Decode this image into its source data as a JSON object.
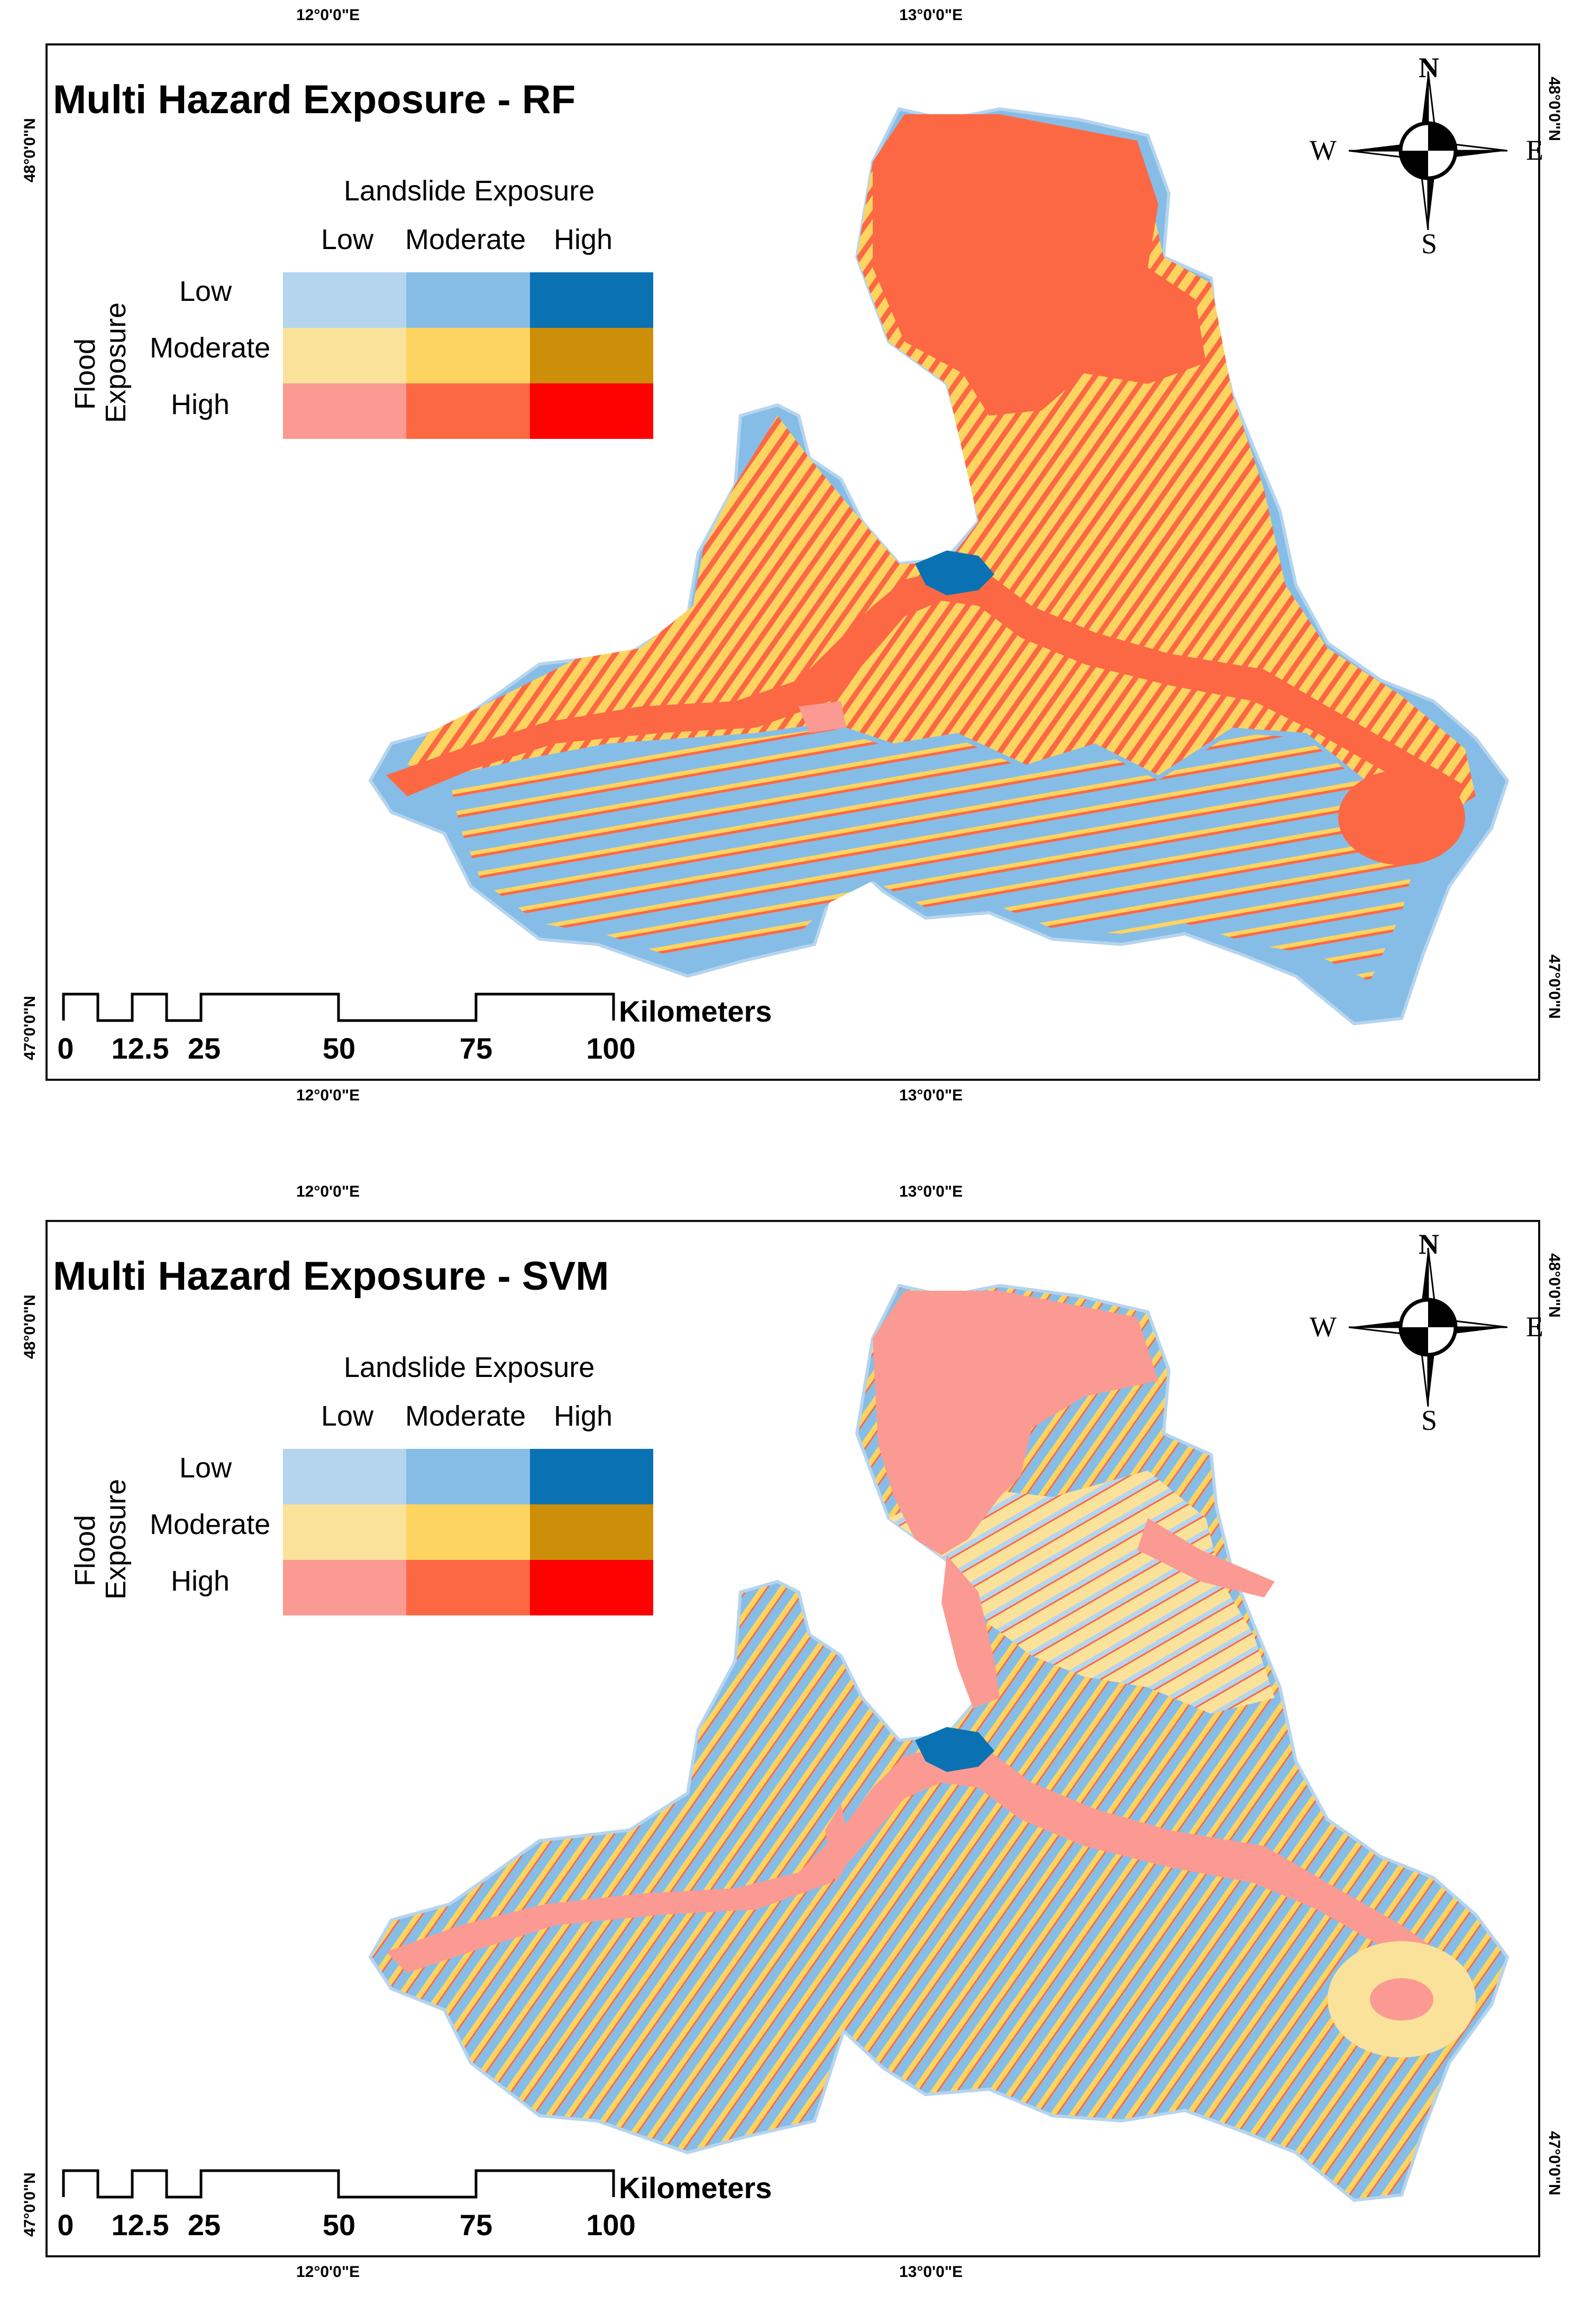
{
  "colors": {
    "low_low": "#b5d4ee",
    "low_mod": "#86bde6",
    "low_high": "#0a72b2",
    "mod_low": "#fbe29a",
    "mod_mod": "#fdd460",
    "mod_high": "#cd8e0a",
    "high_low": "#fb9a92",
    "high_mod": "#fd6844",
    "high_high": "#fd0201"
  },
  "graticule": {
    "lon_left": "12°0'0\"E",
    "lon_right": "13°0'0\"E",
    "lat_top": "48°0'0\"N",
    "lat_bottom": "47°0'0\"N"
  },
  "legend": {
    "landslide_title": "Landslide Exposure",
    "flood_title_line1": "Flood",
    "flood_title_line2": "Exposure",
    "columns": [
      "Low",
      "Moderate",
      "High"
    ],
    "rows": [
      "Low",
      "Moderate",
      "High"
    ]
  },
  "compass": {
    "n": "N",
    "s": "S",
    "e": "E",
    "w": "W"
  },
  "scalebar": {
    "unit": "Kilometers",
    "ticks": [
      "0",
      "12.5",
      "25",
      "50",
      "75",
      "100"
    ]
  },
  "maps": [
    {
      "title": "Multi Hazard Exposure - RF",
      "dominant": "high_mod",
      "base": "low_low"
    },
    {
      "title": "Multi Hazard Exposure - SVM",
      "dominant": "high_low",
      "base": "low_low"
    }
  ]
}
